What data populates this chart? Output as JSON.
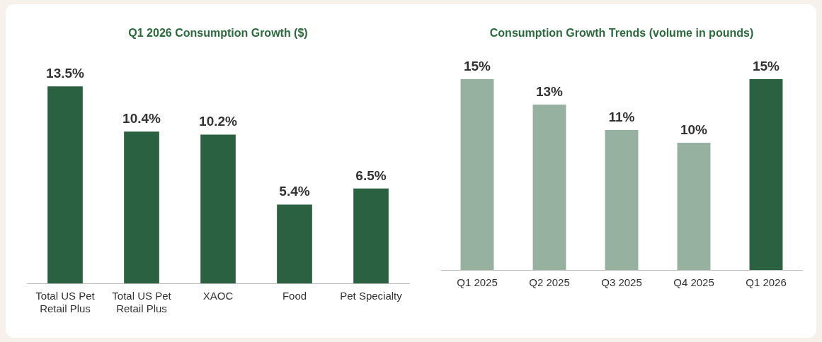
{
  "chart_data": [
    {
      "type": "bar",
      "title": "Q1 2026 Consumption Growth ($)",
      "categories": [
        "Total US Pet Retail Plus",
        "Total US Pet Retail Plus",
        "XAOC",
        "Food",
        "Pet Specialty"
      ],
      "values": [
        13.5,
        10.4,
        10.2,
        5.4,
        6.5
      ],
      "color": "#2a6141",
      "value_labels": [
        "13.5%",
        "10.4%",
        "10.2%",
        "5.4%",
        "6.5%"
      ],
      "grid": false,
      "legend": false
    },
    {
      "type": "bar",
      "title": "Consumption Growth Trends (volume in pounds)",
      "categories": [
        "Q1 2025",
        "Q2 2025",
        "Q3 2025",
        "Q4 2025",
        "Q1 2026"
      ],
      "values": [
        15,
        13,
        11,
        10,
        15
      ],
      "colors": [
        "#96b19f",
        "#96b19f",
        "#96b19f",
        "#96b19f",
        "#2a6141"
      ],
      "value_labels": [
        "15%",
        "13%",
        "11%",
        "10%",
        "15%"
      ],
      "grid": false,
      "legend": false
    }
  ]
}
